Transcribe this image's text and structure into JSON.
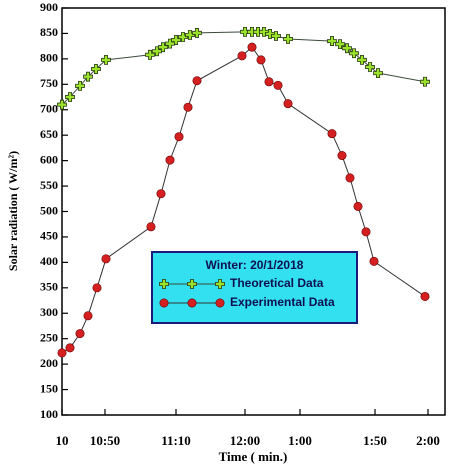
{
  "chart_data": {
    "type": "line",
    "legend_title": "Winter: 20/1/2018",
    "x_label": "Time ( min.)",
    "y_label": "Solar radiation ( W/m²)",
    "xlim": [
      0,
      383
    ],
    "ylim": [
      100,
      900
    ],
    "xticks": [
      {
        "value": 0,
        "label": "10"
      },
      {
        "value": 43,
        "label": "10:50"
      },
      {
        "value": 114,
        "label": "11:10"
      },
      {
        "value": 183,
        "label": "12:00"
      },
      {
        "value": 238,
        "label": "1:00"
      },
      {
        "value": 313,
        "label": "1:50"
      },
      {
        "value": 366,
        "label": "2:00"
      }
    ],
    "yticks": [
      100,
      150,
      200,
      250,
      300,
      350,
      400,
      450,
      500,
      550,
      600,
      650,
      700,
      750,
      800,
      850,
      900
    ],
    "legend": "center",
    "series": [
      {
        "name": "Theoretical Data",
        "color": "#9be22a",
        "line_color": "#3a4a3a",
        "marker": "plus",
        "x": [
          0,
          8,
          18,
          26,
          34,
          44,
          88,
          95,
          101,
          108,
          114,
          121,
          128,
          135,
          183,
          190,
          196,
          202,
          208,
          214,
          226,
          270,
          278,
          285,
          292,
          300,
          308,
          316,
          363
        ],
        "values": [
          710,
          725,
          747,
          765,
          780,
          798,
          808,
          815,
          823,
          830,
          837,
          843,
          847,
          851,
          853,
          853,
          853,
          853,
          849,
          845,
          839,
          835,
          829,
          821,
          811,
          798,
          784,
          772,
          755
        ]
      },
      {
        "name": "Experimental Data",
        "color": "#d42020",
        "line_color": "#333333",
        "marker": "circle",
        "x": [
          0,
          8,
          18,
          26,
          35,
          44,
          89,
          99,
          108,
          117,
          126,
          135,
          180,
          190,
          199,
          207,
          216,
          226,
          270,
          280,
          288,
          296,
          304,
          312,
          363
        ],
        "values": [
          222,
          232,
          260,
          295,
          350,
          407,
          470,
          535,
          601,
          647,
          705,
          757,
          806,
          823,
          798,
          755,
          748,
          712,
          653,
          610,
          566,
          510,
          460,
          402,
          333
        ]
      }
    ]
  }
}
